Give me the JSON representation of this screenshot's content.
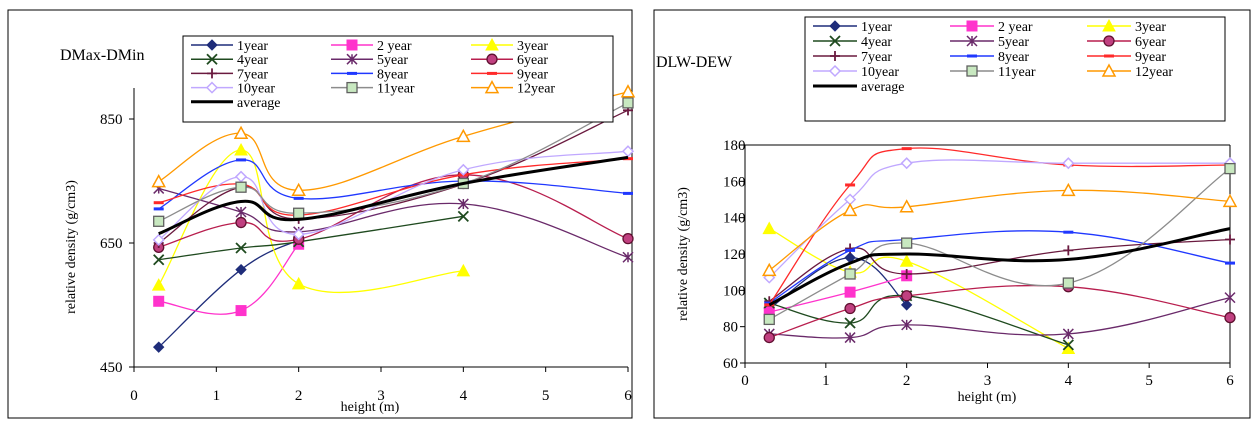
{
  "chart_data": [
    {
      "type": "line",
      "title": "DMax-DMin",
      "xlabel": "height (m)",
      "ylabel": "relative density (g/cm3)",
      "xlim": [
        0,
        6
      ],
      "ylim": [
        450,
        900
      ],
      "xticks": [
        0,
        1,
        2,
        3,
        4,
        5,
        6
      ],
      "yticks": [
        450,
        650,
        850
      ],
      "grid": false,
      "legend": "top",
      "series": [
        {
          "name": "1year",
          "color": "#1f2d7a",
          "marker": "diamond",
          "x": [
            0.3,
            1.3,
            2
          ],
          "y": [
            482,
            607,
            655
          ]
        },
        {
          "name": "2 year",
          "color": "#ff33cc",
          "marker": "square",
          "x": [
            0.3,
            1.3,
            2
          ],
          "y": [
            556,
            541,
            648
          ]
        },
        {
          "name": "3year",
          "color": "#ffff00",
          "marker": "triangle",
          "x": [
            0.3,
            1.3,
            2,
            4
          ],
          "y": [
            582,
            800,
            584,
            605
          ]
        },
        {
          "name": "4year",
          "color": "#1f4a1f",
          "marker": "x",
          "x": [
            0.3,
            1.3,
            2,
            4
          ],
          "y": [
            623,
            642,
            652,
            693
          ]
        },
        {
          "name": "5year",
          "color": "#6a2a6a",
          "marker": "asterisk",
          "x": [
            0.3,
            1.3,
            2,
            4,
            6
          ],
          "y": [
            738,
            700,
            668,
            713,
            627
          ]
        },
        {
          "name": "6year",
          "color": "#b81e4e",
          "marker": "circle",
          "x": [
            0.3,
            1.3,
            2,
            4,
            6
          ],
          "y": [
            643,
            683,
            656,
            760,
            657
          ]
        },
        {
          "name": "7year",
          "color": "#6a1a3f",
          "marker": "plus",
          "x": [
            0.3,
            1.3,
            2,
            4,
            6
          ],
          "y": [
            650,
            740,
            689,
            745,
            864
          ]
        },
        {
          "name": "8year",
          "color": "#2038ff",
          "marker": "dash",
          "x": [
            0.3,
            1.3,
            2,
            4,
            6
          ],
          "y": [
            705,
            784,
            722,
            750,
            730
          ]
        },
        {
          "name": "9year",
          "color": "#ff2a2a",
          "marker": "dash",
          "x": [
            0.3,
            1.3,
            2,
            4,
            6
          ],
          "y": [
            715,
            745,
            695,
            760,
            786
          ]
        },
        {
          "name": "10year",
          "color": "#c0a8ff",
          "marker": "diamond-open",
          "x": [
            0.3,
            1.3,
            2,
            4,
            6
          ],
          "y": [
            655,
            757,
            664,
            768,
            798
          ]
        },
        {
          "name": "11year",
          "color": "#8c8c8c",
          "marker": "square-open",
          "x": [
            0.3,
            1.3,
            2,
            4,
            6
          ],
          "y": [
            685,
            740,
            698,
            746,
            876
          ]
        },
        {
          "name": "12year",
          "color": "#ff9900",
          "marker": "triangle-open",
          "x": [
            0.3,
            1.3,
            2,
            4,
            6
          ],
          "y": [
            749,
            827,
            735,
            822,
            894
          ]
        },
        {
          "name": "average",
          "color": "#000000",
          "marker": "none",
          "width": 3,
          "x": [
            0.3,
            1.3,
            2,
            4,
            6
          ],
          "y": [
            665,
            717,
            688,
            746,
            788
          ]
        }
      ]
    },
    {
      "type": "line",
      "title": "DLW-DEW",
      "xlabel": "height (m)",
      "ylabel": "relative density (g/cm3)",
      "xlim": [
        0,
        6
      ],
      "ylim": [
        60,
        180
      ],
      "xticks": [
        0,
        1,
        2,
        3,
        4,
        5,
        6
      ],
      "yticks": [
        60,
        80,
        100,
        120,
        140,
        160,
        180
      ],
      "grid": false,
      "legend": "top",
      "series": [
        {
          "name": "1year",
          "color": "#1f2d7a",
          "marker": "diamond",
          "x": [
            0.3,
            1.3,
            2
          ],
          "y": [
            90,
            118,
            92
          ]
        },
        {
          "name": "2 year",
          "color": "#ff33cc",
          "marker": "square",
          "x": [
            0.3,
            1.3,
            2
          ],
          "y": [
            88,
            99,
            108
          ]
        },
        {
          "name": "3year",
          "color": "#ffff00",
          "marker": "triangle",
          "x": [
            0.3,
            1.3,
            2,
            4
          ],
          "y": [
            134,
            110,
            116,
            68
          ]
        },
        {
          "name": "4year",
          "color": "#1f4a1f",
          "marker": "x",
          "x": [
            0.3,
            1.3,
            2,
            4
          ],
          "y": [
            93,
            82,
            97,
            70
          ]
        },
        {
          "name": "5year",
          "color": "#6a2a6a",
          "marker": "asterisk",
          "x": [
            0.3,
            1.3,
            2,
            4,
            6
          ],
          "y": [
            76,
            74,
            81,
            76,
            96
          ]
        },
        {
          "name": "6year",
          "color": "#b81e4e",
          "marker": "circle",
          "x": [
            0.3,
            1.3,
            2,
            4,
            6
          ],
          "y": [
            74,
            90,
            97,
            102,
            85
          ]
        },
        {
          "name": "7year",
          "color": "#6a1a3f",
          "marker": "plus",
          "x": [
            0.3,
            1.3,
            2,
            4,
            6
          ],
          "y": [
            94,
            123,
            109,
            122,
            128
          ]
        },
        {
          "name": "8year",
          "color": "#2038ff",
          "marker": "dash",
          "x": [
            0.3,
            1.3,
            2,
            4,
            6
          ],
          "y": [
            93,
            122,
            128,
            132,
            115
          ]
        },
        {
          "name": "9year",
          "color": "#ff2a2a",
          "marker": "dash",
          "x": [
            0.3,
            1.3,
            2,
            4,
            6
          ],
          "y": [
            92,
            158,
            178,
            169,
            169
          ]
        },
        {
          "name": "10year",
          "color": "#c0a8ff",
          "marker": "diamond-open",
          "x": [
            0.3,
            1.3,
            2,
            4,
            6
          ],
          "y": [
            107,
            150,
            170,
            170,
            170
          ]
        },
        {
          "name": "11year",
          "color": "#8c8c8c",
          "marker": "square-open",
          "x": [
            0.3,
            1.3,
            2,
            4,
            6
          ],
          "y": [
            84,
            109,
            126,
            104,
            167
          ]
        },
        {
          "name": "12year",
          "color": "#ff9900",
          "marker": "triangle-open",
          "x": [
            0.3,
            1.3,
            2,
            4,
            6
          ],
          "y": [
            111,
            144,
            146,
            155,
            149
          ]
        },
        {
          "name": "average",
          "color": "#000000",
          "marker": "none",
          "width": 3,
          "x": [
            0.3,
            1.3,
            2,
            4,
            6
          ],
          "y": [
            92,
            115,
            120,
            117,
            134
          ]
        }
      ]
    }
  ]
}
